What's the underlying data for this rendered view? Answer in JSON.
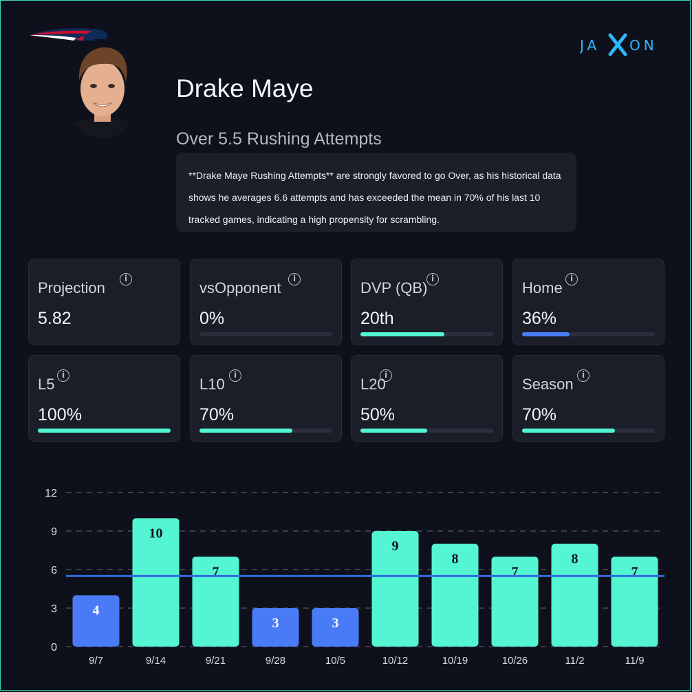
{
  "header": {
    "player_name": "Drake Maye",
    "prop_line": "Over 5.5 Rushing Attempts",
    "summary": "**Drake Maye Rushing Attempts** are strongly favored to go Over, as his historical data shows he averages 6.6 attempts and has exceeded the mean in 70% of his last 10 tracked games, indicating a high propensity for scrambling.",
    "brand_text": "JAXON"
  },
  "icons": {
    "team_logo": "patriots-logo",
    "avatar": "player-headshot",
    "info": "info-icon"
  },
  "colors": {
    "background": "#0e111b",
    "frame": "#3fd9b8",
    "accent_teal": "#53f5d2",
    "accent_blue": "#4a7bf7",
    "line_blue": "#2f6bdc"
  },
  "metrics": [
    {
      "label": "Projection",
      "value": "5.82",
      "fill": null,
      "color": ""
    },
    {
      "label": "vsOpponent",
      "value": "0%",
      "fill": 0,
      "color": "#53f5d2"
    },
    {
      "label": "DVP (QB)",
      "value": "20th",
      "fill": 0.63,
      "color": "#53f5d2"
    },
    {
      "label": "Home",
      "value": "36%",
      "fill": 0.36,
      "color": "#4a7bf7"
    },
    {
      "label": "L5",
      "value": "100%",
      "fill": 1.0,
      "color": "#53f5d2"
    },
    {
      "label": "L10",
      "value": "70%",
      "fill": 0.7,
      "color": "#53f5d2"
    },
    {
      "label": "L20",
      "value": "50%",
      "fill": 0.5,
      "color": "#53f5d2"
    },
    {
      "label": "Season",
      "value": "70%",
      "fill": 0.7,
      "color": "#53f5d2"
    }
  ],
  "chart_data": {
    "type": "bar",
    "categories": [
      "9/7",
      "9/14",
      "9/21",
      "9/28",
      "10/5",
      "10/12",
      "10/19",
      "10/26",
      "11/2",
      "11/9"
    ],
    "values": [
      4,
      10,
      7,
      3,
      3,
      9,
      8,
      7,
      8,
      7
    ],
    "line_value": 5.5,
    "ylim": [
      0,
      12
    ],
    "yticks": [
      0,
      3,
      6,
      9,
      12
    ],
    "grid": true,
    "over_color": "#53f5d2",
    "under_color": "#4a7bf7",
    "line_color": "#2f6bdc"
  }
}
